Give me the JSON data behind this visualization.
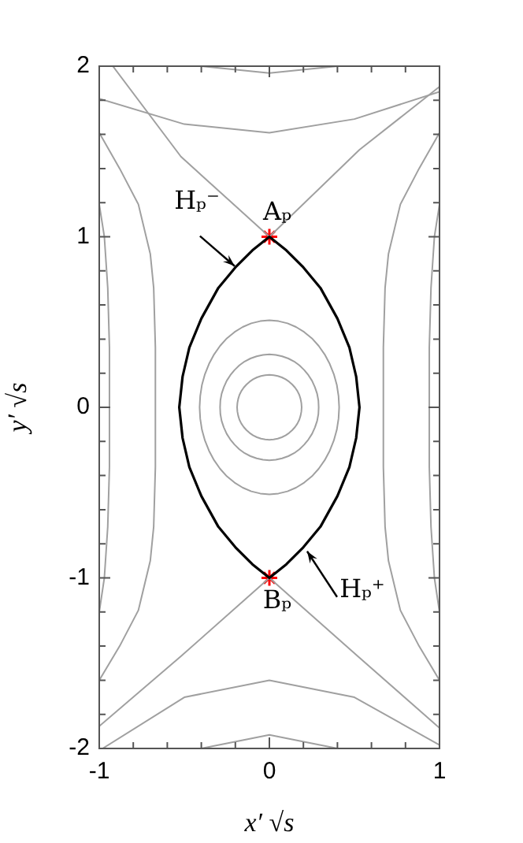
{
  "chart_data": {
    "type": "line",
    "xlabel": "x′ √s",
    "ylabel": "y′ √s",
    "xlim": [
      -1,
      1
    ],
    "ylim": [
      -2,
      2
    ],
    "xticks": [
      -1,
      {
        "value": -0.8,
        "label": null
      },
      {
        "value": -0.6,
        "label": null
      },
      {
        "value": -0.4,
        "label": null
      },
      {
        "value": -0.2,
        "label": null
      },
      0,
      {
        "value": 0.2,
        "label": null
      },
      {
        "value": 0.4,
        "label": null
      },
      {
        "value": 0.6,
        "label": null
      },
      {
        "value": 0.8,
        "label": null
      },
      1
    ],
    "yticks": [
      -2,
      {
        "value": -1.8,
        "label": null
      },
      {
        "value": -1.6,
        "label": null
      },
      {
        "value": -1.4,
        "label": null
      },
      {
        "value": -1.2,
        "label": null
      },
      -1,
      {
        "value": -0.8,
        "label": null
      },
      {
        "value": -0.6,
        "label": null
      },
      {
        "value": -0.4,
        "label": null
      },
      {
        "value": -0.2,
        "label": null
      },
      0,
      {
        "value": 0.2,
        "label": null
      },
      {
        "value": 0.4,
        "label": null
      },
      {
        "value": 0.6,
        "label": null
      },
      {
        "value": 0.8,
        "label": null
      },
      1,
      {
        "value": 1.2,
        "label": null
      },
      {
        "value": 1.4,
        "label": null
      },
      {
        "value": 1.6,
        "label": null
      },
      {
        "value": 1.8,
        "label": null
      },
      2
    ],
    "grid": false,
    "legend": false,
    "marker": "none",
    "series": [
      {
        "type": "line",
        "color": "#a0a0a0",
        "x": [
          -1,
          -0.88,
          -0.77,
          -0.7,
          -0.68,
          -0.67,
          -0.67,
          -0.68,
          -0.7,
          -0.77,
          -0.88,
          -1
        ],
        "values": [
          1.61,
          1.4,
          1.19,
          0.9,
          0.7,
          0.35,
          -0.35,
          -0.7,
          -0.9,
          -1.19,
          -1.4,
          -1.6
        ]
      },
      {
        "type": "line",
        "color": "#a0a0a0",
        "x": [
          -1,
          -0.97,
          -0.95,
          -0.94,
          -0.94,
          -0.95,
          -0.97,
          -1
        ],
        "values": [
          1.19,
          1.0,
          0.7,
          0.35,
          -0.35,
          -0.7,
          -1.0,
          -1.2
        ]
      },
      {
        "type": "line",
        "color": "#a0a0a0",
        "x": [
          1,
          0.88,
          0.77,
          0.7,
          0.68,
          0.67,
          0.67,
          0.68,
          0.7,
          0.77,
          0.88,
          1
        ],
        "values": [
          1.61,
          1.4,
          1.19,
          0.9,
          0.7,
          0.35,
          -0.35,
          -0.7,
          -0.9,
          -1.19,
          -1.4,
          -1.6
        ]
      },
      {
        "type": "line",
        "color": "#a0a0a0",
        "x": [
          1,
          0.97,
          0.95,
          0.94,
          0.94,
          0.95,
          0.97,
          1
        ],
        "values": [
          1.19,
          1.0,
          0.7,
          0.35,
          -0.35,
          -0.7,
          -1.0,
          -1.2
        ]
      },
      {
        "type": "line",
        "color": "#a0a0a0",
        "x": [
          -0.92,
          -0.52,
          0,
          0.53,
          1
        ],
        "values": [
          2,
          1.47,
          1,
          1.51,
          1.88
        ]
      },
      {
        "type": "line",
        "color": "#a0a0a0",
        "x": [
          -1,
          -0.52,
          0,
          0.52,
          1
        ],
        "values": [
          -1.87,
          -1.46,
          -1,
          -1.46,
          -1.88
        ]
      },
      {
        "type": "line",
        "color": "#a0a0a0",
        "x": [
          -1,
          -0.5,
          0,
          0.5,
          1
        ],
        "values": [
          1.81,
          1.66,
          1.61,
          1.69,
          1.85
        ]
      },
      {
        "type": "line",
        "color": "#a0a0a0",
        "x": [
          -0.98,
          -0.5,
          0,
          0.5,
          1
        ],
        "values": [
          -2,
          -1.7,
          -1.6,
          -1.7,
          -1.98
        ]
      },
      {
        "type": "line",
        "color": "#a0a0a0",
        "x": [
          -0.4,
          0,
          0.4
        ],
        "values": [
          2,
          1.96,
          2
        ]
      },
      {
        "type": "line",
        "color": "#a0a0a0",
        "x": [
          -0.4,
          0,
          0.4
        ],
        "values": [
          -2,
          -1.92,
          -2
        ]
      },
      {
        "type": "scatter",
        "color": "#ff0000",
        "marker": "cross",
        "x": [
          0,
          0
        ],
        "values": [
          1,
          -1
        ]
      }
    ],
    "annotations": [
      "Hₚ⁻",
      {
        "text": "Aₚ",
        "x": 0,
        "y": 1
      },
      {
        "text": "Bₚ",
        "x": 0,
        "y": -1
      },
      "Hₚ⁺"
    ]
  }
}
